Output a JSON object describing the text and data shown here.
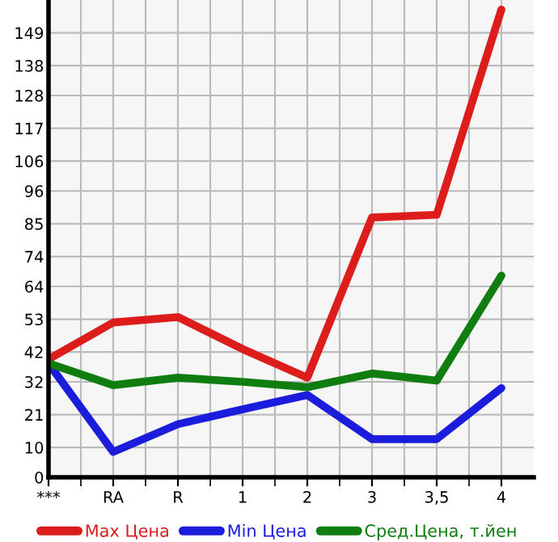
{
  "chart_data": {
    "type": "line",
    "categories": [
      "***",
      "RA",
      "R",
      "1",
      "2",
      "3",
      "3,5",
      "4"
    ],
    "series": [
      {
        "name": "Max Цена",
        "color": "#dd1c1c",
        "values": [
          39.6,
          51.9,
          53.7,
          43,
          33.4,
          87.1,
          88,
          156.8
        ]
      },
      {
        "name": "Min Цена",
        "color": "#1c1cdd",
        "values": [
          38.2,
          8.5,
          17.8,
          22.8,
          27.6,
          12.8,
          12.8,
          29.9
        ]
      },
      {
        "name": "Сред.Цена, т.йен",
        "color": "#0f7d0f",
        "values": [
          38.2,
          30.9,
          33.4,
          32,
          30.2,
          34.8,
          32.4,
          67.6
        ]
      }
    ],
    "ylim": [
      0,
      160
    ],
    "yticks": [
      0,
      10,
      21,
      32,
      42,
      53,
      64,
      74,
      85,
      96,
      106,
      117,
      128,
      138,
      149
    ],
    "grid": true,
    "legend": "bottom",
    "marker": "none",
    "line_style": "solid"
  }
}
